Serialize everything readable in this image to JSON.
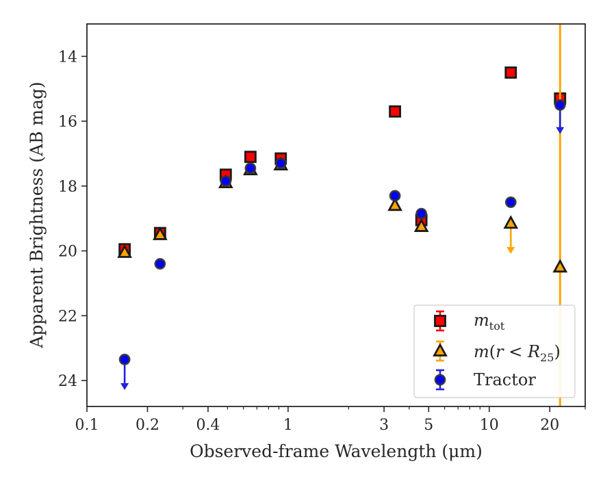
{
  "chart_data": {
    "type": "scatter",
    "xlabel": "Observed-frame Wavelength (μm)",
    "ylabel": "Apparent Brightness (AB mag)",
    "x_scale": "log",
    "y_inverted": true,
    "xlim": [
      0.1,
      30
    ],
    "ylim": [
      24.8,
      13.0
    ],
    "grid": false,
    "legend_position": "bottom-right",
    "x_ticks": [
      {
        "value": 0.1,
        "label": "0.1"
      },
      {
        "value": 0.2,
        "label": "0.2"
      },
      {
        "value": 0.4,
        "label": "0.4"
      },
      {
        "value": 1,
        "label": "1"
      },
      {
        "value": 3,
        "label": "3"
      },
      {
        "value": 5,
        "label": "5"
      },
      {
        "value": 10,
        "label": "10"
      },
      {
        "value": 20,
        "label": "20"
      }
    ],
    "x_minor_ticks": [
      0.3,
      0.5,
      0.6,
      0.7,
      0.8,
      0.9,
      2,
      4,
      6,
      7,
      8,
      9,
      30
    ],
    "y_ticks": [
      {
        "value": 14,
        "label": "14"
      },
      {
        "value": 16,
        "label": "16"
      },
      {
        "value": 18,
        "label": "18"
      },
      {
        "value": 20,
        "label": "20"
      },
      {
        "value": 22,
        "label": "22"
      },
      {
        "value": 24,
        "label": "24"
      }
    ],
    "series": [
      {
        "key": "mtot",
        "legend_label": "m_tot",
        "marker": "square",
        "color": "#ff0000",
        "edge_color": "#1a1a1a",
        "errorbar_color": "#ff0000",
        "points": [
          {
            "x": 0.154,
            "y": 19.95
          },
          {
            "x": 0.231,
            "y": 19.45
          },
          {
            "x": 0.49,
            "y": 17.65
          },
          {
            "x": 0.65,
            "y": 17.1
          },
          {
            "x": 0.92,
            "y": 17.15
          },
          {
            "x": 3.4,
            "y": 15.7
          },
          {
            "x": 4.6,
            "y": 19.05
          },
          {
            "x": 12.8,
            "y": 14.5
          },
          {
            "x": 22.5,
            "y": 15.3
          }
        ]
      },
      {
        "key": "mr25",
        "legend_label": "m(r < R_25)",
        "marker": "triangle",
        "color": "#ffa500",
        "edge_color": "#1a1a1a",
        "errorbar_color": "#ffa500",
        "points": [
          {
            "x": 0.154,
            "y": 20.05
          },
          {
            "x": 0.231,
            "y": 19.5
          },
          {
            "x": 0.49,
            "y": 17.9
          },
          {
            "x": 0.65,
            "y": 17.5
          },
          {
            "x": 0.92,
            "y": 17.35
          },
          {
            "x": 3.4,
            "y": 18.6
          },
          {
            "x": 4.6,
            "y": 19.25
          },
          {
            "x": 12.8,
            "y": 19.15,
            "upper_limit_to": 20.05
          },
          {
            "x": 22.5,
            "y": 20.5,
            "err_low": 13.0,
            "err_high": 24.8
          }
        ]
      },
      {
        "key": "tractor",
        "legend_label": "Tractor",
        "marker": "circle",
        "color": "#0000ff",
        "edge_color": "#333333",
        "errorbar_color": "#2222dd",
        "points": [
          {
            "x": 0.154,
            "y": 23.35,
            "upper_limit_to": 24.25
          },
          {
            "x": 0.231,
            "y": 20.4
          },
          {
            "x": 0.49,
            "y": 17.85
          },
          {
            "x": 0.65,
            "y": 17.45
          },
          {
            "x": 0.92,
            "y": 17.3
          },
          {
            "x": 3.4,
            "y": 18.3
          },
          {
            "x": 4.6,
            "y": 18.85
          },
          {
            "x": 12.8,
            "y": 18.5
          },
          {
            "x": 22.5,
            "y": 15.5,
            "upper_limit_to": 16.35
          }
        ]
      }
    ]
  }
}
